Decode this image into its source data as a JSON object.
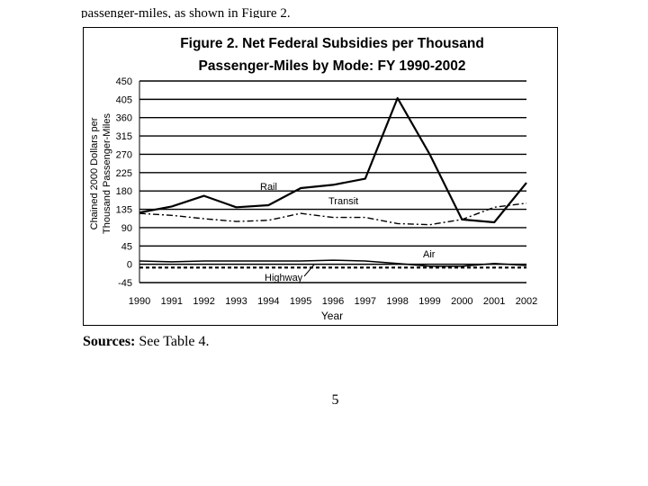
{
  "page": {
    "top_text": "passenger-miles, as shown in Figure 2.",
    "sources_label": "Sources:",
    "sources_text": " See Table 4.",
    "page_number": "5"
  },
  "chart_data": {
    "type": "line",
    "title_line1": "Figure 2. Net Federal Subsidies per Thousand",
    "title_line2": "Passenger-Miles by Mode: FY 1990-2002",
    "xlabel": "Year",
    "ylabel_line1": "Chained 2000 Dollars per",
    "ylabel_line2": "Thousand Passenger-Miles",
    "x": [
      "1990",
      "1991",
      "1992",
      "1993",
      "1994",
      "1995",
      "1996",
      "1997",
      "1998",
      "1999",
      "2000",
      "2001",
      "2002"
    ],
    "yticks": [
      450,
      405,
      360,
      315,
      270,
      225,
      180,
      135,
      90,
      45,
      0,
      -45
    ],
    "ylim": [
      -45,
      450
    ],
    "grid": true,
    "series": [
      {
        "name": "Rail",
        "style": "solid",
        "width": 2.2,
        "values": [
          127,
          142,
          168,
          140,
          145,
          187,
          195,
          210,
          408,
          270,
          110,
          103,
          200
        ]
      },
      {
        "name": "Transit",
        "style": "dashdot",
        "width": 1.4,
        "values": [
          125,
          120,
          112,
          105,
          108,
          125,
          115,
          115,
          100,
          97,
          110,
          140,
          150
        ]
      },
      {
        "name": "Air",
        "style": "solid",
        "width": 1.5,
        "values": [
          8,
          6,
          8,
          8,
          8,
          8,
          10,
          8,
          2,
          -5,
          -5,
          2,
          -3
        ]
      },
      {
        "name": "Highway",
        "style": "dashed",
        "width": 2.2,
        "values": [
          -8,
          -8,
          -8,
          -8,
          -8,
          -8,
          -8,
          -8,
          -8,
          -8,
          -8,
          -8,
          -8
        ]
      }
    ],
    "annotations": [
      "Rail",
      "Transit",
      "Air",
      "Highway"
    ]
  }
}
